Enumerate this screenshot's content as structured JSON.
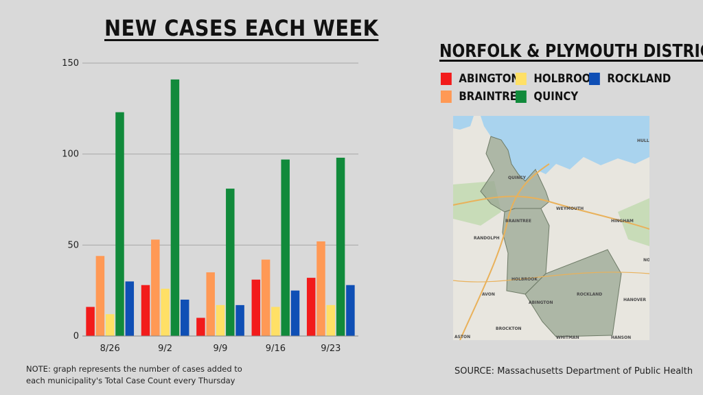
{
  "title": "NEW CASES EACH WEEK",
  "legend_title": "NORFOLK & PLYMOUTH DISTRICT",
  "note": "NOTE: graph represents the number of cases added to each municipality's Total Case Count every Thursday",
  "source": "SOURCE: Massachusetts Department of Public Health",
  "map": {
    "labels": [
      "QUINCY",
      "WEYMOUTH",
      "BRAINTREE",
      "RANDOLPH",
      "HINGHAM",
      "HOLBROOK",
      "AVON",
      "ABINGTON",
      "ROCKLAND",
      "HANOVER",
      "BROCKTON",
      "WHITMAN",
      "HANSON",
      "HULL",
      "ASTON",
      "NO"
    ],
    "colors": {
      "land": "#e8e6df",
      "water": "#a9d3ee",
      "district": "#9aa793",
      "green": "#c8dcb8",
      "road": "#e9b15a"
    }
  },
  "chart_data": {
    "type": "bar",
    "categories": [
      "8/26",
      "9/2",
      "9/9",
      "9/16",
      "9/23"
    ],
    "series": [
      {
        "name": "ABINGTON",
        "color": "#f21b1b",
        "values": [
          16,
          28,
          10,
          31,
          32
        ]
      },
      {
        "name": "BRAINTREE",
        "color": "#ff9955",
        "values": [
          44,
          53,
          35,
          42,
          52
        ]
      },
      {
        "name": "HOLBROOK",
        "color": "#ffe066",
        "values": [
          12,
          26,
          17,
          16,
          17
        ]
      },
      {
        "name": "QUINCY",
        "color": "#118a3b",
        "values": [
          123,
          141,
          81,
          97,
          98
        ]
      },
      {
        "name": "ROCKLAND",
        "color": "#0f4fb5",
        "values": [
          30,
          20,
          17,
          25,
          28
        ]
      }
    ],
    "yticks": [
      0,
      50,
      100,
      150
    ],
    "ylim": [
      0,
      150
    ],
    "grid": true
  }
}
